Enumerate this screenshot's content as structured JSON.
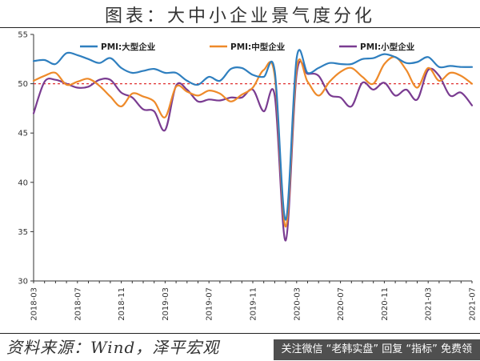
{
  "page": {
    "title": "图表：大中小企业景气度分化",
    "source": "资料来源：Wind，泽平宏观",
    "banner": "关注微信 “老韩实盘” 回复 “指标” 免费领"
  },
  "chart_data": {
    "type": "line",
    "title": "",
    "xlabel": "",
    "ylabel": "",
    "ylim": [
      30,
      55
    ],
    "yticks": [
      30,
      35,
      40,
      45,
      50,
      55
    ],
    "grid": false,
    "legend_position": "top",
    "reference_line": {
      "value": 50,
      "color": "#e03030",
      "style": "dashed"
    },
    "x": [
      "2018-03",
      "2018-04",
      "2018-05",
      "2018-06",
      "2018-07",
      "2018-08",
      "2018-09",
      "2018-10",
      "2018-11",
      "2018-12",
      "2019-01",
      "2019-02",
      "2019-03",
      "2019-04",
      "2019-05",
      "2019-06",
      "2019-07",
      "2019-08",
      "2019-09",
      "2019-10",
      "2019-11",
      "2019-12",
      "2020-01",
      "2020-02",
      "2020-03",
      "2020-04",
      "2020-05",
      "2020-06",
      "2020-07",
      "2020-08",
      "2020-09",
      "2020-10",
      "2020-11",
      "2020-12",
      "2021-01",
      "2021-02",
      "2021-03",
      "2021-04",
      "2021-05",
      "2021-06",
      "2021-07"
    ],
    "xtick_labels": [
      "2018-03",
      "2018-07",
      "2018-11",
      "2019-03",
      "2019-07",
      "2019-11",
      "2020-03",
      "2020-07",
      "2020-11",
      "2021-03",
      "2021-07"
    ],
    "series": [
      {
        "name": "PMI:大型企业",
        "color": "#2f7fbf",
        "values": [
          52.3,
          52.4,
          52.0,
          53.1,
          52.9,
          52.5,
          52.1,
          52.6,
          51.6,
          51.1,
          51.3,
          51.5,
          51.1,
          51.1,
          50.3,
          49.9,
          50.7,
          50.3,
          51.5,
          51.6,
          50.9,
          50.7,
          51.3,
          36.2,
          52.6,
          51.1,
          51.6,
          52.1,
          52.0,
          52.0,
          52.5,
          52.6,
          53.0,
          52.7,
          52.1,
          52.2,
          52.7,
          51.7,
          51.8,
          51.7,
          51.7
        ]
      },
      {
        "name": "PMI:中型企业",
        "color": "#ee8a2a",
        "values": [
          50.3,
          50.8,
          51.1,
          49.9,
          50.2,
          50.5,
          49.8,
          48.7,
          47.7,
          49.0,
          48.7,
          48.2,
          46.6,
          49.7,
          49.2,
          48.8,
          49.3,
          49.0,
          48.2,
          48.9,
          49.6,
          51.4,
          50.8,
          35.5,
          51.6,
          50.2,
          48.8,
          50.2,
          51.2,
          51.6,
          50.7,
          50.0,
          52.0,
          52.7,
          51.4,
          49.6,
          51.6,
          50.3,
          51.1,
          50.8,
          50.0
        ]
      },
      {
        "name": "PMI:小型企业",
        "color": "#7a3c91",
        "values": [
          47.0,
          50.2,
          50.4,
          50.0,
          49.6,
          49.7,
          50.4,
          50.4,
          49.1,
          48.6,
          47.4,
          47.2,
          45.3,
          49.8,
          49.4,
          48.2,
          48.4,
          48.3,
          48.6,
          48.6,
          49.4,
          47.2,
          48.8,
          34.1,
          51.0,
          51.0,
          50.8,
          48.9,
          48.6,
          47.7,
          50.1,
          49.4,
          50.1,
          48.8,
          49.4,
          48.4,
          51.4,
          50.8,
          48.8,
          49.1,
          47.8
        ]
      }
    ]
  }
}
